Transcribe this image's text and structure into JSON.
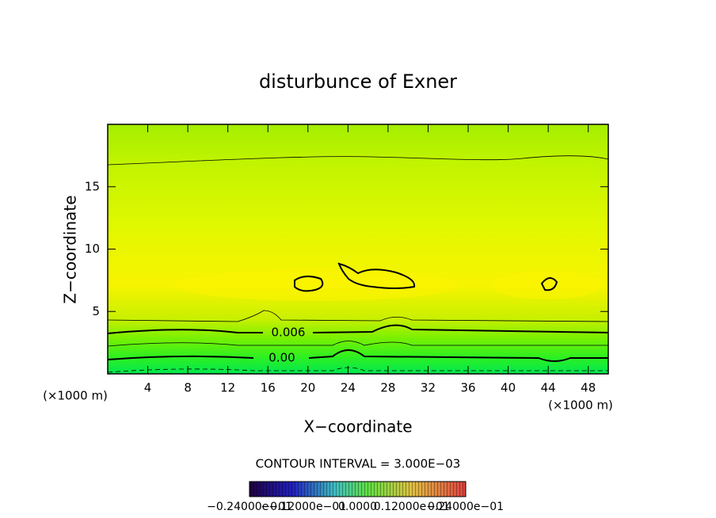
{
  "chart_data": {
    "type": "contour",
    "title": "disturbunce of Exner",
    "xlabel": "X−coordinate",
    "ylabel": "Z−coordinate",
    "xunit_labels": [
      "(×1000 m)",
      "(×1000 m)"
    ],
    "xlim": [
      0,
      50
    ],
    "ylim": [
      0,
      20
    ],
    "xticks": [
      4,
      8,
      12,
      16,
      20,
      24,
      28,
      32,
      36,
      40,
      44,
      48
    ],
    "yticks": [
      5,
      10,
      15
    ],
    "contour_labels": [
      "0.006",
      "0.00"
    ],
    "contour_interval": "CONTOUR INTERVAL = 3.000E−03",
    "colorbar_labels": [
      "−0.24000e−01",
      "−0.12000e−01",
      "0.0000",
      "0.12000e−01",
      "0.24000e−01"
    ]
  }
}
